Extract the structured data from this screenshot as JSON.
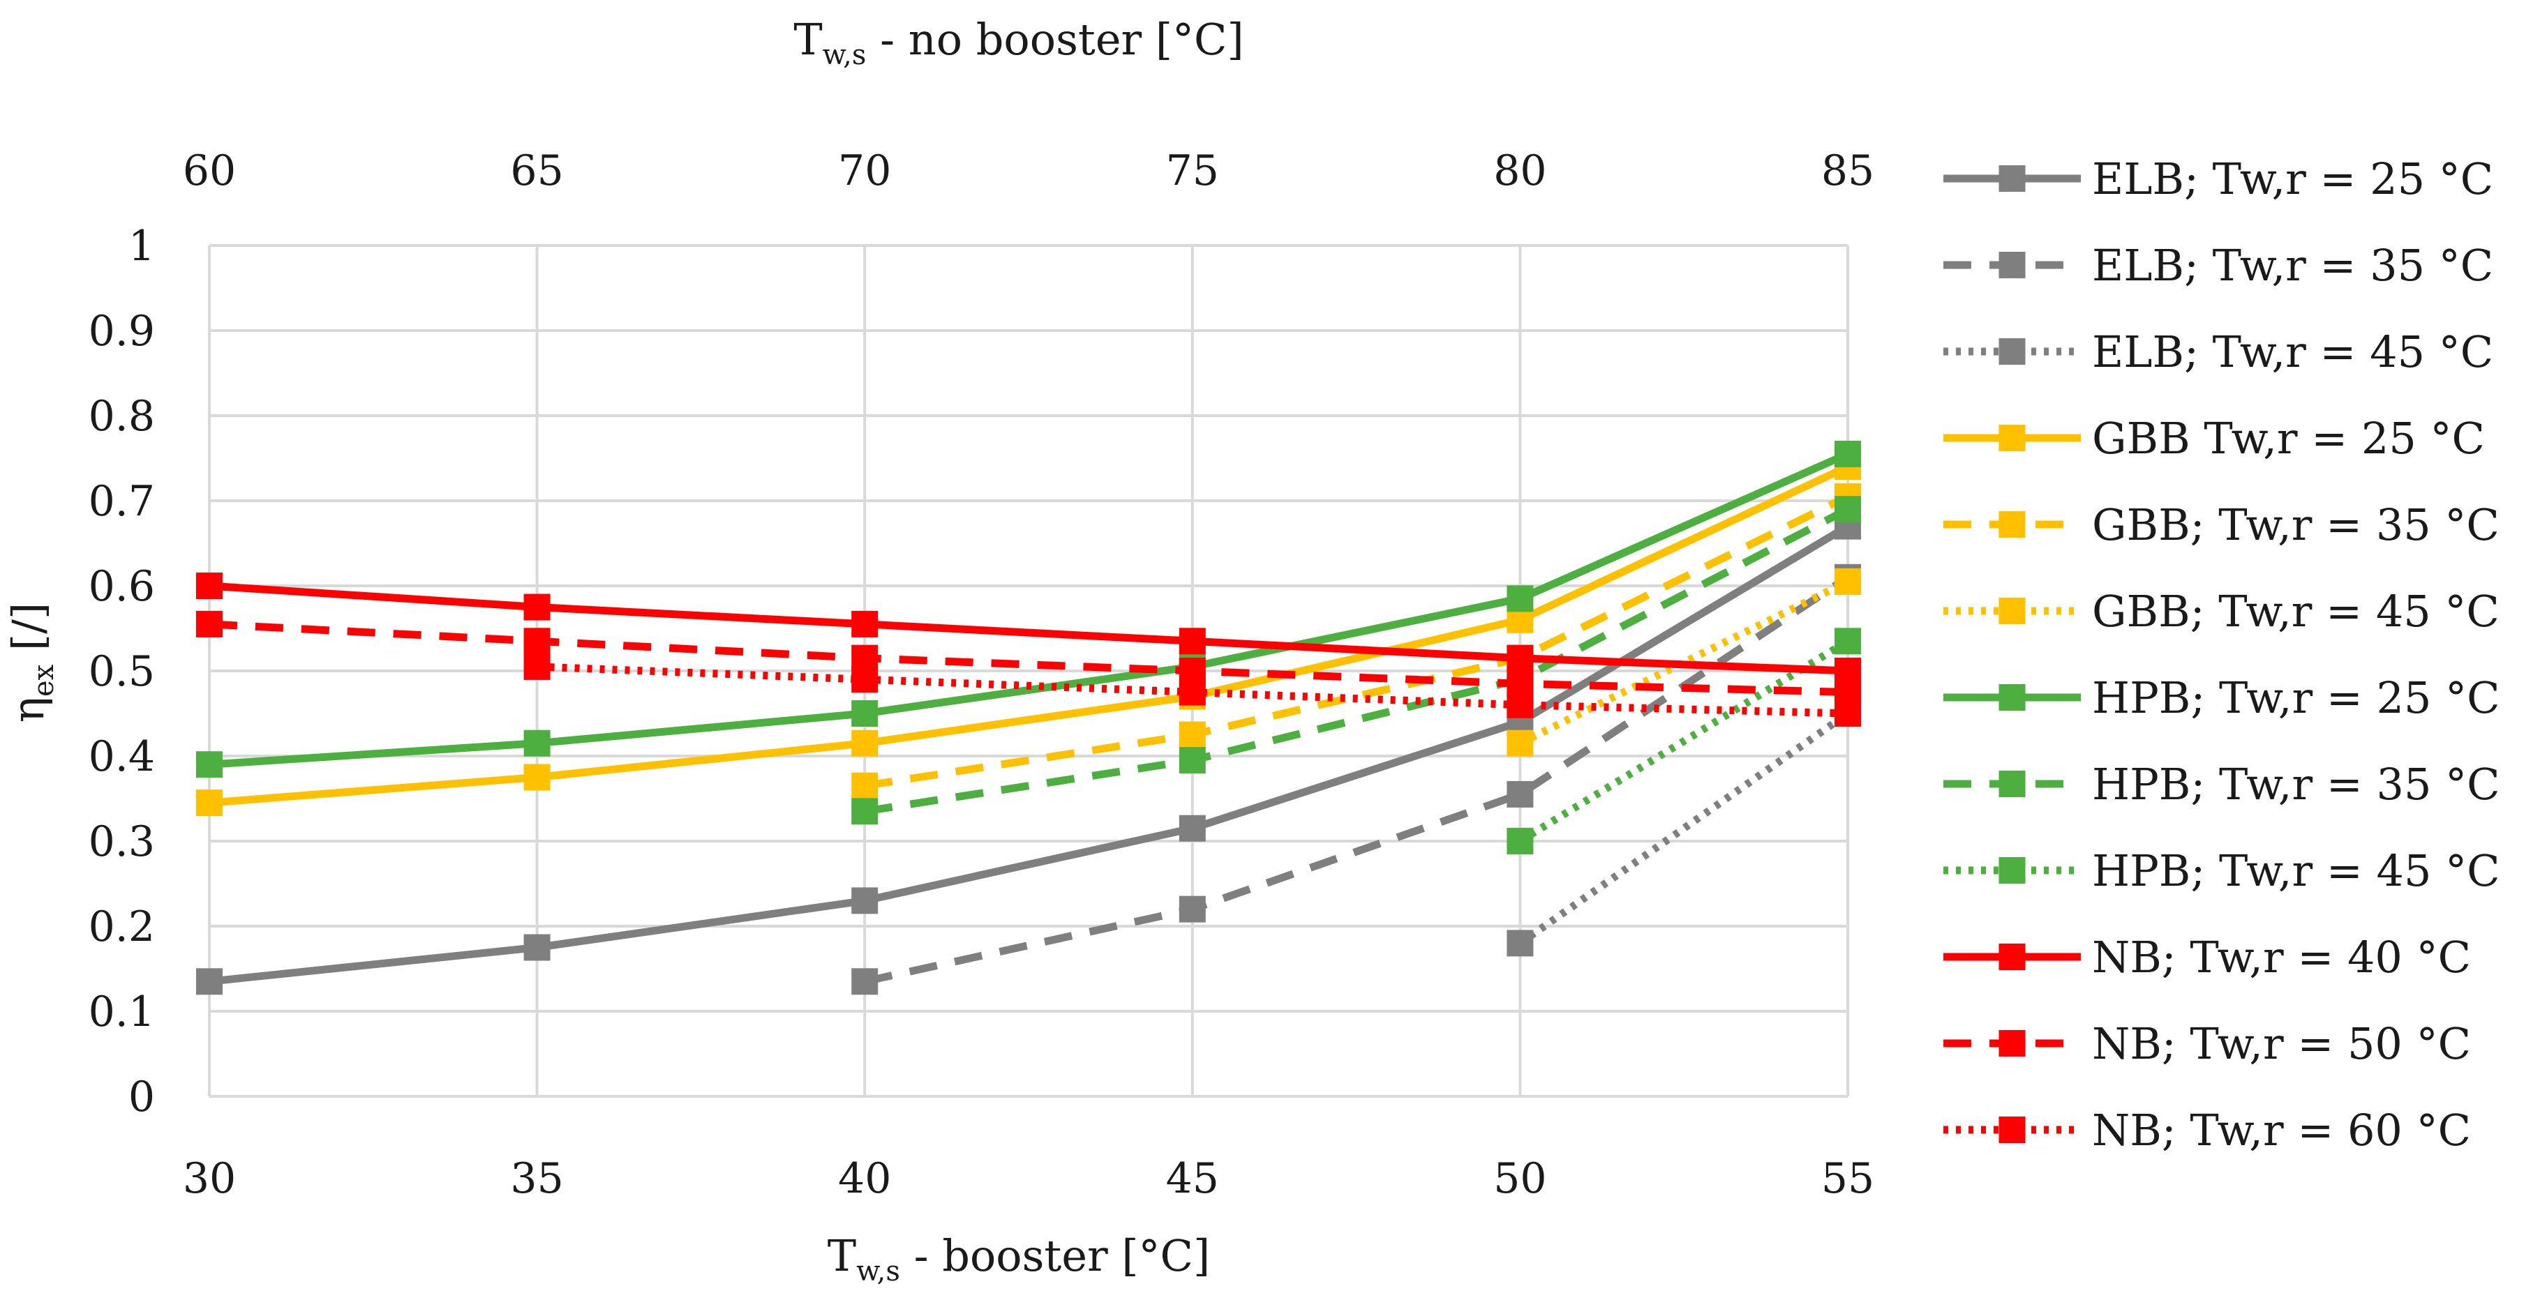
{
  "chart_data": {
    "type": "line",
    "title": "",
    "x": [
      30,
      35,
      40,
      45,
      50,
      55
    ],
    "xlim": [
      30,
      55
    ],
    "ylim": [
      0,
      1
    ],
    "grid": true,
    "legend_position": "right",
    "x_ticks": [
      "30",
      "35",
      "40",
      "45",
      "50",
      "55"
    ],
    "x2_ticks": [
      "60",
      "65",
      "70",
      "75",
      "80",
      "85"
    ],
    "y_ticks": [
      "0",
      "0.1",
      "0.2",
      "0.3",
      "0.4",
      "0.5",
      "0.6",
      "0.7",
      "0.8",
      "0.9",
      "1"
    ],
    "xlabel": {
      "main": "T",
      "sub": "w,s",
      "rest": " - booster [°C]"
    },
    "x2label": {
      "main": "T",
      "sub": "w,s",
      "rest": " - no booster [°C]"
    },
    "ylabel": {
      "main": "η",
      "sub": "ex",
      "rest": " [/]"
    },
    "series": [
      {
        "name": "ELB; Tw,r = 25 °C",
        "color": "#7f7f7f",
        "style": "solid",
        "values": [
          0.135,
          0.175,
          0.23,
          0.315,
          0.44,
          0.67
        ]
      },
      {
        "name": "ELB; Tw,r = 35 °C",
        "color": "#7f7f7f",
        "style": "dashed",
        "values": [
          null,
          null,
          0.135,
          0.22,
          0.355,
          0.61
        ]
      },
      {
        "name": "ELB; Tw,r = 45 °C",
        "color": "#7f7f7f",
        "style": "dotted",
        "values": [
          null,
          null,
          null,
          null,
          0.18,
          0.45
        ]
      },
      {
        "name": "GBB Tw,r = 25 °C",
        "color": "#ffc000",
        "style": "solid",
        "values": [
          0.345,
          0.375,
          0.415,
          0.47,
          0.56,
          0.74
        ]
      },
      {
        "name": "GBB; Tw,r = 35 °C",
        "color": "#ffc000",
        "style": "dashed",
        "values": [
          null,
          null,
          0.365,
          0.425,
          0.515,
          0.705
        ]
      },
      {
        "name": "GBB; Tw,r = 45 °C",
        "color": "#ffc000",
        "style": "dotted",
        "values": [
          null,
          null,
          null,
          null,
          0.415,
          0.605
        ]
      },
      {
        "name": "HPB; Tw,r = 25 °C",
        "color": "#4caf3f",
        "style": "solid",
        "values": [
          0.39,
          0.415,
          0.45,
          0.505,
          0.585,
          0.755
        ]
      },
      {
        "name": "HPB; Tw,r = 35 °C",
        "color": "#4caf3f",
        "style": "dashed",
        "values": [
          null,
          null,
          0.335,
          0.395,
          0.49,
          0.69
        ]
      },
      {
        "name": "HPB; Tw,r = 45 °C",
        "color": "#4caf3f",
        "style": "dotted",
        "values": [
          null,
          null,
          null,
          null,
          0.3,
          0.535
        ]
      },
      {
        "name": "NB; Tw,r = 40 °C",
        "color": "#ff0000",
        "style": "solid",
        "values": [
          0.6,
          0.575,
          0.555,
          0.535,
          0.515,
          0.5
        ]
      },
      {
        "name": "NB; Tw,r = 50 °C",
        "color": "#ff0000",
        "style": "dashed",
        "values": [
          0.555,
          0.535,
          0.515,
          0.5,
          0.485,
          0.475
        ]
      },
      {
        "name": "NB; Tw,r = 60 °C",
        "color": "#ff0000",
        "style": "dotted",
        "values": [
          null,
          0.505,
          0.49,
          0.475,
          0.46,
          0.45
        ]
      }
    ]
  }
}
